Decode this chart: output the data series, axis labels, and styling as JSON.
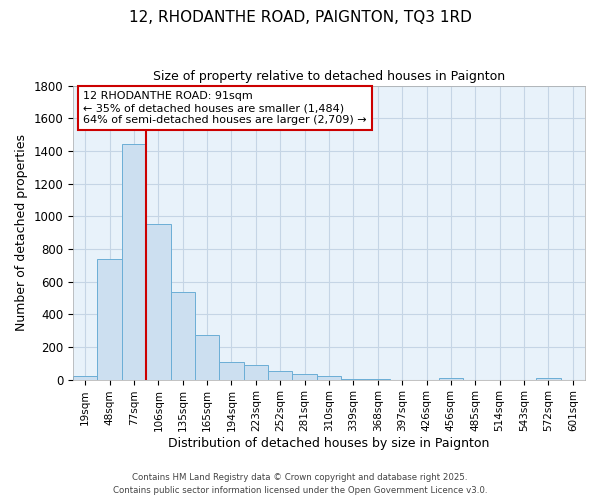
{
  "title": "12, RHODANTHE ROAD, PAIGNTON, TQ3 1RD",
  "subtitle": "Size of property relative to detached houses in Paignton",
  "xlabel": "Distribution of detached houses by size in Paignton",
  "ylabel": "Number of detached properties",
  "bar_labels": [
    "19sqm",
    "48sqm",
    "77sqm",
    "106sqm",
    "135sqm",
    "165sqm",
    "194sqm",
    "223sqm",
    "252sqm",
    "281sqm",
    "310sqm",
    "339sqm",
    "368sqm",
    "397sqm",
    "426sqm",
    "456sqm",
    "485sqm",
    "514sqm",
    "543sqm",
    "572sqm",
    "601sqm"
  ],
  "bar_values": [
    20,
    740,
    1440,
    950,
    535,
    275,
    105,
    90,
    50,
    35,
    25,
    5,
    5,
    0,
    0,
    10,
    0,
    0,
    0,
    10,
    0
  ],
  "bar_color": "#ccdff0",
  "bar_edge_color": "#6baed6",
  "vline_color": "#cc0000",
  "ylim": [
    0,
    1800
  ],
  "yticks": [
    0,
    200,
    400,
    600,
    800,
    1000,
    1200,
    1400,
    1600,
    1800
  ],
  "annotation_title": "12 RHODANTHE ROAD: 91sqm",
  "annotation_line1": "← 35% of detached houses are smaller (1,484)",
  "annotation_line2": "64% of semi-detached houses are larger (2,709) →",
  "footer1": "Contains HM Land Registry data © Crown copyright and database right 2025.",
  "footer2": "Contains public sector information licensed under the Open Government Licence v3.0.",
  "background_color": "#ffffff",
  "plot_bg_color": "#e8f2fa",
  "grid_color": "#c5d5e5"
}
